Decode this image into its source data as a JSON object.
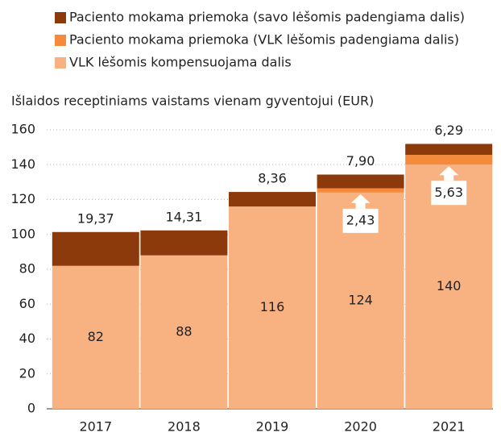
{
  "chart_data": {
    "type": "stacked_bar",
    "title": "Išlaidos receptiniams vaistams vienam gyventojui (EUR)",
    "categories": [
      "2017",
      "2018",
      "2019",
      "2020",
      "2021"
    ],
    "series": [
      {
        "name": "VLK lėšomis kompensuojama dalis",
        "color": "#f8b282",
        "values": [
          82,
          88,
          116,
          124,
          140
        ]
      },
      {
        "name": "Paciento mokama priemoka (VLK lėšomis padengiama dalis)",
        "color": "#f58a3c",
        "values": [
          null,
          null,
          null,
          2.43,
          5.63
        ],
        "value_labels": [
          null,
          null,
          null,
          "2,43",
          "5,63"
        ]
      },
      {
        "name": "Paciento mokama priemoka (savo lėšomis padengiama dalis)",
        "color": "#8c3a0c",
        "values": [
          19.37,
          14.31,
          8.36,
          7.9,
          6.29
        ],
        "value_labels": [
          "19,37",
          "14,31",
          "8,36",
          "7,90",
          "6,29"
        ]
      }
    ],
    "ylim": [
      0,
      160
    ],
    "yticks": [
      0,
      20,
      40,
      60,
      80,
      100,
      120,
      140,
      160
    ],
    "grid": true
  }
}
